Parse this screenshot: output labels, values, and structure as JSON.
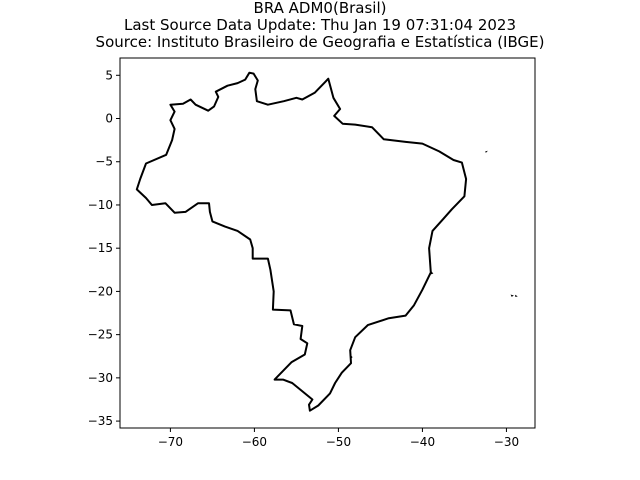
{
  "title": {
    "line1": "BRA ADM0(Brasil)",
    "line2": "Last Source Data Update: Thu Jan 19 07:31:04 2023",
    "line3": "Source: Instituto Brasileiro de Geografia e Estatística (IBGE)"
  },
  "map": {
    "xlim": [
      -76,
      -26.6
    ],
    "ylim": [
      -35.8,
      7.0
    ],
    "x_ticks": [
      -70,
      -60,
      -50,
      -40,
      -30
    ],
    "x_tick_labels": [
      "−70",
      "−60",
      "−50",
      "−40",
      "−30"
    ],
    "y_ticks": [
      5,
      0,
      -5,
      -10,
      -15,
      -20,
      -25,
      -30,
      -35
    ],
    "y_tick_labels": [
      "5",
      "0",
      "−5",
      "−10",
      "−15",
      "−20",
      "−25",
      "−30",
      "−35"
    ],
    "outline_color": "#000000",
    "mainland_outline": [
      [
        -60.1,
        5.2
      ],
      [
        -59.6,
        4.4
      ],
      [
        -59.9,
        3.4
      ],
      [
        -59.7,
        2.0
      ],
      [
        -58.4,
        1.6
      ],
      [
        -56.5,
        2.0
      ],
      [
        -55.0,
        2.4
      ],
      [
        -54.3,
        2.2
      ],
      [
        -52.8,
        3.0
      ],
      [
        -51.6,
        4.2
      ],
      [
        -51.2,
        4.6
      ],
      [
        -50.6,
        2.4
      ],
      [
        -49.8,
        1.1
      ],
      [
        -50.5,
        0.3
      ],
      [
        -49.5,
        -0.6
      ],
      [
        -48.0,
        -0.7
      ],
      [
        -46.0,
        -1.0
      ],
      [
        -44.6,
        -2.4
      ],
      [
        -42.0,
        -2.7
      ],
      [
        -40.0,
        -2.9
      ],
      [
        -38.0,
        -3.8
      ],
      [
        -36.3,
        -4.8
      ],
      [
        -35.3,
        -5.1
      ],
      [
        -34.8,
        -7.0
      ],
      [
        -35.0,
        -9.0
      ],
      [
        -36.5,
        -10.5
      ],
      [
        -37.5,
        -11.6
      ],
      [
        -38.8,
        -13.0
      ],
      [
        -39.2,
        -15.0
      ],
      [
        -39.0,
        -17.8
      ],
      [
        -40.0,
        -19.8
      ],
      [
        -41.0,
        -21.6
      ],
      [
        -42.0,
        -22.8
      ],
      [
        -44.0,
        -23.1
      ],
      [
        -46.5,
        -23.9
      ],
      [
        -48.0,
        -25.3
      ],
      [
        -48.6,
        -26.8
      ],
      [
        -48.5,
        -28.3
      ],
      [
        -49.6,
        -29.4
      ],
      [
        -50.4,
        -30.6
      ],
      [
        -51.0,
        -31.8
      ],
      [
        -52.4,
        -33.2
      ],
      [
        -53.4,
        -33.8
      ],
      [
        -53.5,
        -33.1
      ],
      [
        -53.1,
        -32.5
      ],
      [
        -55.5,
        -30.6
      ],
      [
        -56.6,
        -30.2
      ],
      [
        -57.6,
        -30.2
      ],
      [
        -55.6,
        -28.2
      ],
      [
        -54.0,
        -27.3
      ],
      [
        -53.7,
        -26.0
      ],
      [
        -54.5,
        -25.5
      ],
      [
        -54.3,
        -24.0
      ],
      [
        -55.3,
        -23.8
      ],
      [
        -55.7,
        -22.2
      ],
      [
        -57.8,
        -22.1
      ],
      [
        -57.7,
        -20.0
      ],
      [
        -58.1,
        -17.5
      ],
      [
        -58.4,
        -16.2
      ],
      [
        -60.2,
        -16.2
      ],
      [
        -60.2,
        -15.0
      ],
      [
        -60.5,
        -14.0
      ],
      [
        -62.0,
        -13.0
      ],
      [
        -63.5,
        -12.5
      ],
      [
        -65.0,
        -11.9
      ],
      [
        -65.3,
        -10.8
      ],
      [
        -65.4,
        -9.8
      ],
      [
        -66.7,
        -9.8
      ],
      [
        -68.2,
        -10.8
      ],
      [
        -69.5,
        -10.9
      ],
      [
        -70.6,
        -9.8
      ],
      [
        -72.2,
        -10.0
      ],
      [
        -72.9,
        -9.2
      ],
      [
        -74.0,
        -8.2
      ],
      [
        -73.6,
        -7.0
      ],
      [
        -72.9,
        -5.2
      ],
      [
        -70.5,
        -4.2
      ],
      [
        -69.8,
        -2.5
      ],
      [
        -69.5,
        -1.2
      ],
      [
        -70.0,
        -0.2
      ],
      [
        -69.5,
        0.8
      ],
      [
        -70.0,
        1.6
      ],
      [
        -68.5,
        1.7
      ],
      [
        -67.6,
        2.2
      ],
      [
        -67.0,
        1.6
      ],
      [
        -65.5,
        0.9
      ],
      [
        -64.8,
        1.4
      ],
      [
        -64.3,
        2.5
      ],
      [
        -64.6,
        3.1
      ],
      [
        -63.2,
        3.8
      ],
      [
        -62.0,
        4.1
      ],
      [
        -61.1,
        4.5
      ],
      [
        -60.6,
        5.3
      ],
      [
        -60.1,
        5.2
      ]
    ],
    "islands": [
      [
        [
          -32.43,
          -3.87
        ],
        [
          -32.38,
          -3.83
        ],
        [
          -32.44,
          -3.84
        ],
        [
          -32.43,
          -3.87
        ]
      ],
      [
        [
          -38.9,
          -17.8
        ],
        [
          -38.8,
          -17.9
        ],
        [
          -38.95,
          -17.95
        ],
        [
          -38.9,
          -17.8
        ]
      ],
      [
        [
          -29.4,
          -20.45
        ],
        [
          -29.25,
          -20.5
        ],
        [
          -29.35,
          -20.55
        ],
        [
          -29.4,
          -20.45
        ]
      ],
      [
        [
          -28.9,
          -20.5
        ],
        [
          -28.8,
          -20.55
        ],
        [
          -28.88,
          -20.58
        ],
        [
          -28.9,
          -20.5
        ]
      ],
      [
        [
          -48.6,
          -27.4
        ],
        [
          -48.4,
          -27.6
        ],
        [
          -48.5,
          -27.7
        ],
        [
          -48.6,
          -27.4
        ]
      ]
    ]
  }
}
